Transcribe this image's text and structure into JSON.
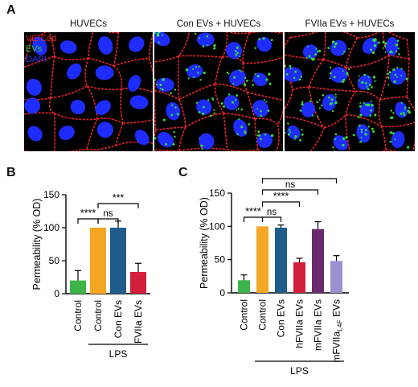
{
  "panel_a": {
    "letter": "A",
    "titles": [
      "HUVECs",
      "Con EVs + HUVECs",
      "FVIIa EVs + HUVECs"
    ],
    "legend": [
      {
        "label": "VE-Cad",
        "color": "#e8252b"
      },
      {
        "label": "EVs",
        "color": "#2fcf3a"
      },
      {
        "label": "DAPI",
        "color": "#2b35ff"
      }
    ]
  },
  "chart_data": [
    {
      "type": "bar",
      "panel": "B",
      "categories": [
        "Control",
        "Control",
        "Con EVs",
        "FVIIa EVs"
      ],
      "values": [
        20,
        100,
        100,
        33
      ],
      "errors": [
        15,
        0,
        10,
        13
      ],
      "colors": [
        "#3cb44a",
        "#f5a623",
        "#1f5c8c",
        "#d21f3c"
      ],
      "ylabel": "Permeability (% OD)",
      "ylim": [
        0,
        150
      ],
      "yticks": [
        0,
        50,
        100,
        150
      ],
      "group_label": {
        "text": "LPS",
        "from": 1,
        "to": 3
      },
      "significance": [
        {
          "from": 0,
          "to": 1,
          "label": "****"
        },
        {
          "from": 1,
          "to": 2,
          "label": "ns"
        },
        {
          "from": 1,
          "to": 3,
          "label": "***"
        }
      ]
    },
    {
      "type": "bar",
      "panel": "C",
      "categories": [
        "Control",
        "Control",
        "Con EVs",
        "hFVIIa EVs",
        "mFVIIa EVs",
        "mFVIIaL4F EVs"
      ],
      "values": [
        19,
        100,
        98,
        46,
        96,
        48
      ],
      "errors": [
        8,
        0,
        4,
        6,
        11,
        8
      ],
      "colors": [
        "#3cb44a",
        "#f5a623",
        "#1f5c8c",
        "#d21f3c",
        "#6b2a6e",
        "#9b90d0"
      ],
      "ylabel": "Permeability (% OD)",
      "ylim": [
        0,
        150
      ],
      "yticks": [
        0,
        50,
        100,
        150
      ],
      "group_label": {
        "text": "LPS",
        "from": 1,
        "to": 5
      },
      "significance": [
        {
          "from": 0,
          "to": 1,
          "label": "****"
        },
        {
          "from": 1,
          "to": 2,
          "label": "ns"
        },
        {
          "from": 1,
          "to": 3,
          "label": "****"
        },
        {
          "from": 1,
          "to": 4,
          "label": "ns"
        },
        {
          "from": 1,
          "to": 5,
          "label": "****"
        }
      ]
    }
  ]
}
